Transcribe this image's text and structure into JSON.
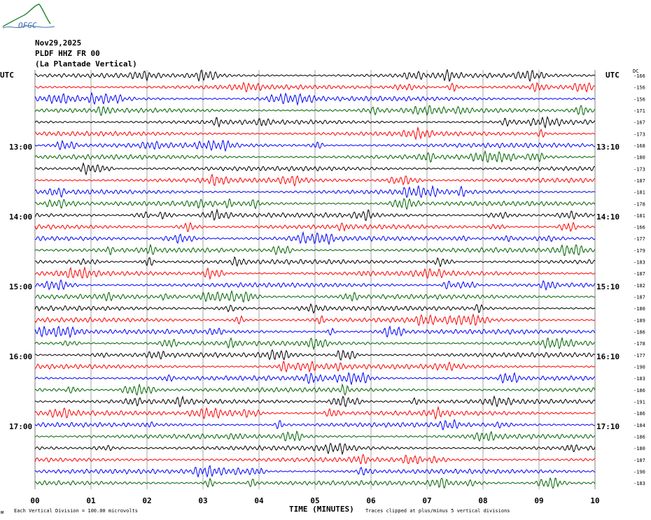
{
  "logo": {
    "text": "OFGC"
  },
  "header": {
    "date": "Nov29,2025",
    "station": "PLDF HHZ FR 00",
    "location": "(La Plantade Vertical)"
  },
  "left_axis": {
    "tz": "UTC",
    "hour_labels": [
      "13:00",
      "14:00",
      "15:00",
      "16:00",
      "17:00"
    ]
  },
  "right_axis": {
    "tz": "UTC",
    "dc_label": "DC",
    "hour_labels": [
      "13:10",
      "14:10",
      "15:10",
      "16:10",
      "17:10"
    ],
    "dc_offsets": [
      "-166",
      "-156",
      "-156",
      "-171",
      "-167",
      "-173",
      "-168",
      "-180",
      "-173",
      "-187",
      "-181",
      "-178",
      "-181",
      "-166",
      "-177",
      "-179",
      "-183",
      "-187",
      "-182",
      "-187",
      "-180",
      "-189",
      "-186",
      "-178",
      "-177",
      "-190",
      "-183",
      "-186",
      "-191",
      "-186",
      "-184",
      "-186",
      "-180",
      "-187",
      "-190",
      "-183"
    ]
  },
  "x_axis": {
    "title": "TIME (MINUTES)",
    "ticks": [
      "00",
      "01",
      "02",
      "03",
      "04",
      "05",
      "06",
      "07",
      "08",
      "09",
      "10"
    ]
  },
  "footer": {
    "division": "Each Vertical Division =  100.00 microvolts",
    "clip_note": "Traces clipped at plus/minus 5 vertical divisions"
  },
  "colors": {
    "trace_cycle": [
      "#000000",
      "#ff0000",
      "#0000ff",
      "#006400"
    ],
    "grid": "#808080"
  },
  "chart_data": {
    "type": "line",
    "title": "",
    "xlabel": "TIME (MINUTES)",
    "ylabel": "",
    "xlim": [
      0,
      10
    ],
    "trace_count": 36,
    "minutes_per_trace": 10,
    "units": "microvolts",
    "vertical_division": 100.0,
    "clip_divisions": 5
  }
}
